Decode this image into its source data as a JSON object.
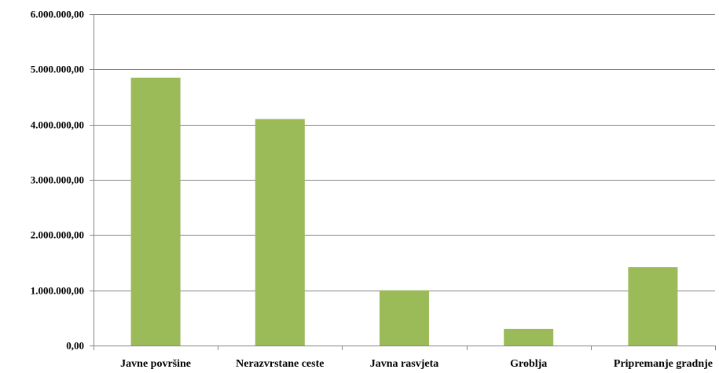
{
  "chart_data": {
    "type": "bar",
    "title": "",
    "xlabel": "",
    "ylabel": "",
    "categories": [
      "Javne površine",
      "Nerazvrstane ceste",
      "Javna rasvjeta",
      "Groblja",
      "Pripremanje gradnje"
    ],
    "values": [
      4850000,
      4100000,
      1000000,
      300000,
      1420000
    ],
    "ylim": [
      0,
      6000000
    ],
    "yticks": [
      0,
      1000000,
      2000000,
      3000000,
      4000000,
      5000000,
      6000000
    ],
    "ytick_labels": [
      "0,00",
      "1.000.000,00",
      "2.000.000,00",
      "3.000.000,00",
      "4.000.000,00",
      "5.000.000,00",
      "6.000.000,00"
    ],
    "grid": true,
    "legend": "none",
    "colors": {
      "bar": "#9BBB59",
      "grid": "#868686",
      "axis": "#868686"
    }
  }
}
